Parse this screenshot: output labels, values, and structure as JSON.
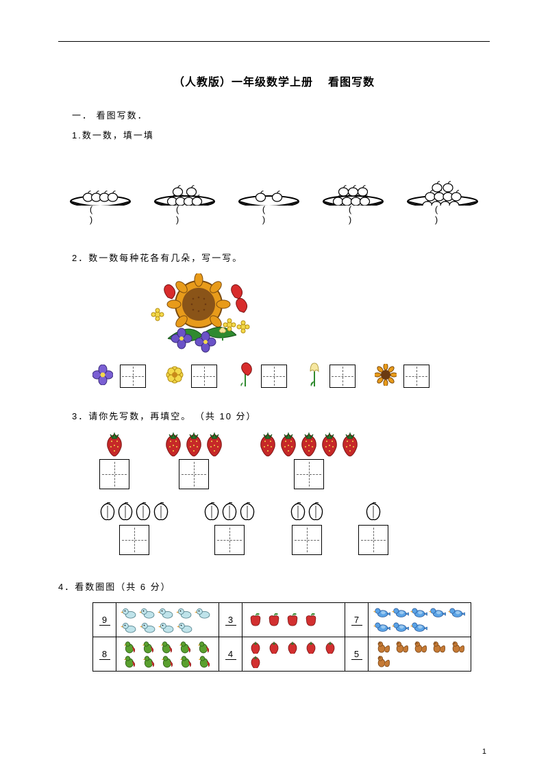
{
  "title_prefix": "（人教版）一年级数学上册",
  "title_main": "看图写数",
  "section1": "一．  看图写数．",
  "q1": "1.数一数，填一填",
  "q2": "2．数一数每种花各有几朵，写一写。",
  "q3": "3．请你先写数，再填空。",
  "q3_points": "（共  10 分）",
  "q4": "4．看数圈图（共   6 分）",
  "plates": [
    4,
    6,
    2,
    7,
    10
  ],
  "flower_icons": [
    {
      "name": "purple-flower",
      "fill": "#7a5fd3",
      "center": "#f3d94a"
    },
    {
      "name": "yellow-flower",
      "fill": "#f3d94a",
      "center": "#c98b1a"
    },
    {
      "name": "red-carnation",
      "fill": "#d82c2c",
      "stem": "#2f8a2f"
    },
    {
      "name": "tulip",
      "fill": "#f6e7a0",
      "stem": "#2f8a2f"
    },
    {
      "name": "sunflower",
      "fill": "#e89b1a",
      "center": "#6b3a12"
    }
  ],
  "q3_strawberry_counts": [
    1,
    3,
    5
  ],
  "q3_peach_counts": [
    4,
    3,
    2,
    1
  ],
  "q4_rows": [
    {
      "num": "9",
      "icon": "duck",
      "count": 9,
      "num2": "3",
      "icon2": "apple",
      "count2": 4,
      "num3": "7",
      "icon3": "bluebird",
      "count3": 8
    },
    {
      "num": "8",
      "icon": "parrot",
      "count": 10,
      "num2": "4",
      "icon2": "strawberry",
      "count2": 6,
      "num3": "5",
      "icon3": "squirrel",
      "count3": 6
    }
  ],
  "colors": {
    "duck": "#bfe3ea",
    "parrot": "#5aa02f",
    "apple": "#d23030",
    "strawberry": "#d23030",
    "bluebird": "#5aa3e6",
    "squirrel": "#c57a35",
    "leaf": "#3a8a32",
    "straw_body": "#c62828",
    "straw_leaf": "#2d7a2d",
    "peach": "#ffffff",
    "peach_stroke": "#000"
  },
  "page_number": "1"
}
